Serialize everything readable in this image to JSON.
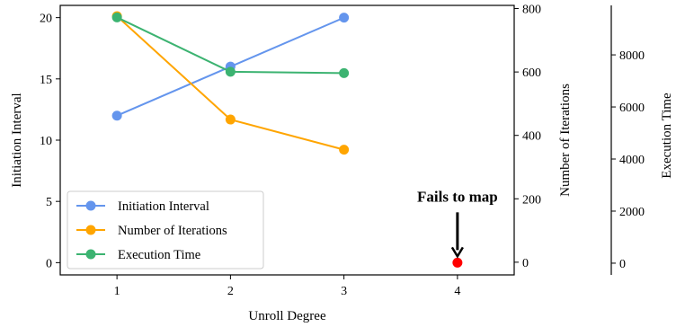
{
  "chart_data": {
    "type": "line",
    "xlabel": "Unroll Degree",
    "x_ticks": [
      1,
      2,
      3,
      4
    ],
    "xlim": [
      0.5,
      4.5
    ],
    "axes": {
      "left": {
        "label": "Initiation Interval",
        "ylim": [
          -1,
          21
        ],
        "ticks": [
          0,
          5,
          10,
          15,
          20
        ]
      },
      "right1": {
        "label": "Number of Iterations",
        "ylim": [
          -40,
          810
        ],
        "ticks": [
          0,
          200,
          400,
          600,
          800
        ]
      },
      "right2": {
        "label": "Execution Time",
        "ylim": [
          -450,
          9900
        ],
        "ticks": [
          0,
          2000,
          4000,
          6000,
          8000
        ]
      }
    },
    "series": [
      {
        "name": "Initiation Interval",
        "axis": "left",
        "color": "#6495ED",
        "x": [
          1,
          2,
          3
        ],
        "y": [
          12,
          16,
          20
        ]
      },
      {
        "name": "Number of Iterations",
        "axis": "right1",
        "color": "#FFA500",
        "x": [
          1,
          2,
          3
        ],
        "y": [
          776,
          450,
          355
        ]
      },
      {
        "name": "Execution Time",
        "axis": "right2",
        "color": "#3CB371",
        "x": [
          1,
          2,
          3
        ],
        "y": [
          9440,
          7350,
          7300
        ]
      }
    ],
    "failure_point": {
      "x": 4,
      "y": 0,
      "axis": "left",
      "color": "#FF0000"
    },
    "annotation": {
      "text": "Fails to map",
      "color": "#FF0000",
      "target_x": 4,
      "target_y": 0
    },
    "legend_position": "lower-left",
    "grid": false
  }
}
